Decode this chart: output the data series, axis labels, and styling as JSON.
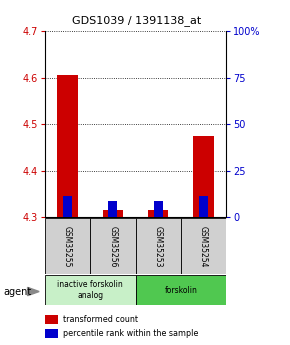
{
  "title": "GDS1039 / 1391138_at",
  "samples": [
    "GSM35255",
    "GSM35256",
    "GSM35253",
    "GSM35254"
  ],
  "red_values": [
    4.605,
    4.315,
    4.315,
    4.475
  ],
  "blue_values": [
    4.345,
    4.335,
    4.335,
    4.345
  ],
  "bar_base": 4.3,
  "ylim_left": [
    4.3,
    4.7
  ],
  "ylim_right": [
    0,
    100
  ],
  "yticks_left": [
    4.3,
    4.4,
    4.5,
    4.6,
    4.7
  ],
  "yticks_right": [
    0,
    25,
    50,
    75,
    100
  ],
  "ytick_right_labels": [
    "0",
    "25",
    "50",
    "75",
    "100%"
  ],
  "groups": [
    {
      "label": "inactive forskolin\nanalog",
      "span": [
        0,
        2
      ],
      "color": "#c8f0c8"
    },
    {
      "label": "forskolin",
      "span": [
        2,
        4
      ],
      "color": "#50c850"
    }
  ],
  "agent_label": "agent",
  "legend_red": "transformed count",
  "legend_blue": "percentile rank within the sample",
  "red_color": "#cc0000",
  "blue_color": "#0000cc",
  "bar_width": 0.45,
  "blue_bar_width": 0.2,
  "grid_color": "#000000",
  "left_tick_color": "#cc0000",
  "right_tick_color": "#0000cc",
  "sample_box_color": "#d0d0d0",
  "fig_bg": "#ffffff"
}
